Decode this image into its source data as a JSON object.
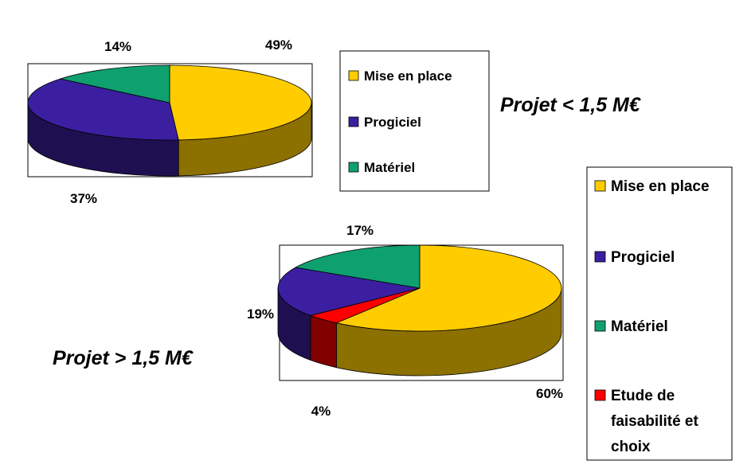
{
  "chart_data": [
    {
      "type": "pie",
      "caption": "Projet < 1,5 M€",
      "slices": [
        {
          "label": "Mise en place",
          "value": 49,
          "value_label": "49%",
          "color": "#FFCC00",
          "side_color": "#8C7000"
        },
        {
          "label": "Progiciel",
          "value": 37,
          "value_label": "37%",
          "color": "#3B1FA0",
          "side_color": "#1E1050"
        },
        {
          "label": "Matériel",
          "value": 14,
          "value_label": "14%",
          "color": "#0FA070",
          "side_color": "#075038"
        }
      ],
      "legend": [
        "Mise en place",
        "Progiciel",
        "Matériel"
      ],
      "legend_position": "right"
    },
    {
      "type": "pie",
      "caption": "Projet > 1,5 M€",
      "slices": [
        {
          "label": "Mise en place",
          "value": 60,
          "value_label": "60%",
          "color": "#FFCC00",
          "side_color": "#8C7000"
        },
        {
          "label": "Etude de faisabilité et choix",
          "value": 4,
          "value_label": "4%",
          "color": "#FF0000",
          "side_color": "#800000"
        },
        {
          "label": "Progiciel",
          "value": 19,
          "value_label": "19%",
          "color": "#3B1FA0",
          "side_color": "#1E1050"
        },
        {
          "label": "Matériel",
          "value": 17,
          "value_label": "17%",
          "color": "#0FA070",
          "side_color": "#075038"
        }
      ],
      "legend": [
        "Mise en place",
        "Progiciel",
        "Matériel",
        "Etude de faisabilité et choix"
      ],
      "legend_position": "right"
    }
  ]
}
